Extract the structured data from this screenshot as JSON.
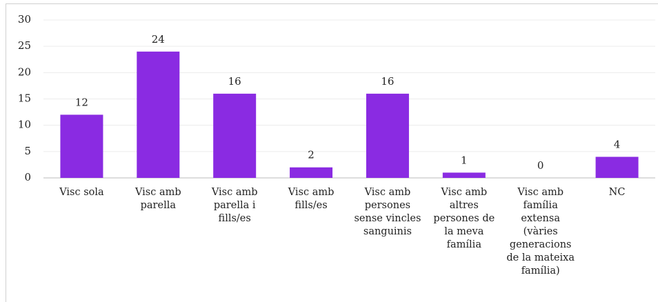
{
  "chart_data": {
    "type": "bar",
    "categories": [
      "Visc sola",
      "Visc amb parella",
      "Visc amb parella i fills/es",
      "Visc amb fills/es",
      "Visc amb persones sense vincles sanguinis",
      "Visc amb altres persones de la meva família",
      "Visc amb família extensa (vàries generacions de la mateixa família)",
      "NC"
    ],
    "values": [
      12,
      24,
      16,
      2,
      16,
      1,
      0,
      4
    ],
    "color": "#8a2be2",
    "ylim": [
      0,
      30
    ],
    "yticks": [
      0,
      5,
      10,
      15,
      20,
      25,
      30
    ],
    "grid": true
  }
}
